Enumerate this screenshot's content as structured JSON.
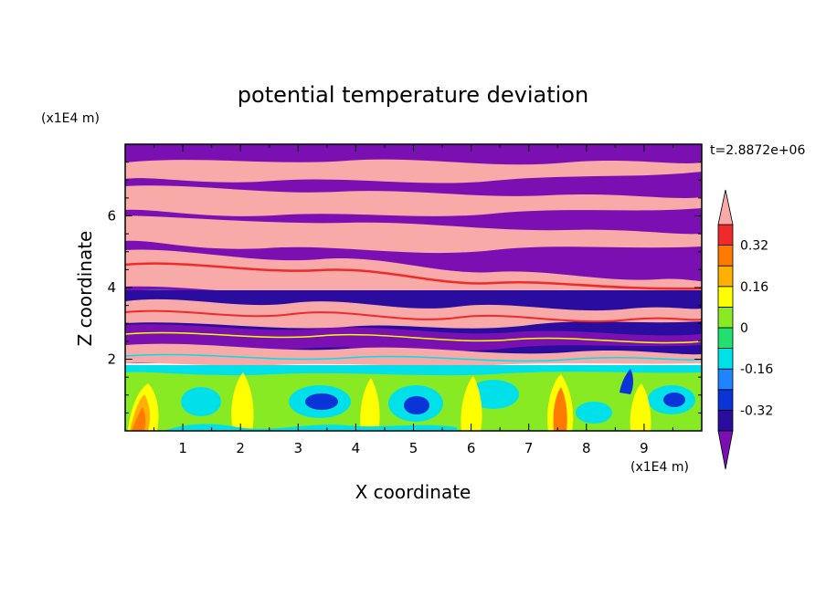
{
  "chart_data": {
    "type": "heatmap",
    "title": "potential temperature deviation",
    "xlabel": "X coordinate",
    "ylabel": "Z coordinate",
    "x_unit": "(x1E4 m)",
    "y_unit": "(x1E4 m)",
    "time_label": "t=2.8872e+06",
    "xlim": [
      0,
      10
    ],
    "ylim": [
      0,
      8
    ],
    "x_ticks": [
      "1",
      "2",
      "3",
      "4",
      "5",
      "6",
      "7",
      "8",
      "9"
    ],
    "y_ticks": [
      "2",
      "4",
      "6"
    ],
    "colorbar": {
      "levels": [
        -0.4,
        -0.32,
        -0.24,
        -0.16,
        -0.08,
        0,
        0.08,
        0.16,
        0.24,
        0.32,
        0.4
      ],
      "labels": [
        "0.32",
        "0.16",
        "0",
        "-0.16",
        "-0.32"
      ],
      "colors": [
        "#7b10b2",
        "#2a0d9e",
        "#0a34d8",
        "#1e84ff",
        "#00e0e8",
        "#22e070",
        "#88ea22",
        "#ffff00",
        "#ffb000",
        "#ff7b00",
        "#f02a2a",
        "#f7aaa8"
      ],
      "extend": "both"
    },
    "layers": [
      {
        "z_range": [
          0,
          1.8
        ],
        "description_values": "near-surface convective eddies, values mostly between -0.32 and 0.32"
      },
      {
        "z_range": [
          1.8,
          4.2
        ],
        "description_values": "mixed filaments alternating below -0.4 and above 0.4"
      },
      {
        "z_range": [
          4.2,
          8
        ],
        "description_values": "stratified bands of values above 0.4 and below -0.4"
      }
    ]
  }
}
